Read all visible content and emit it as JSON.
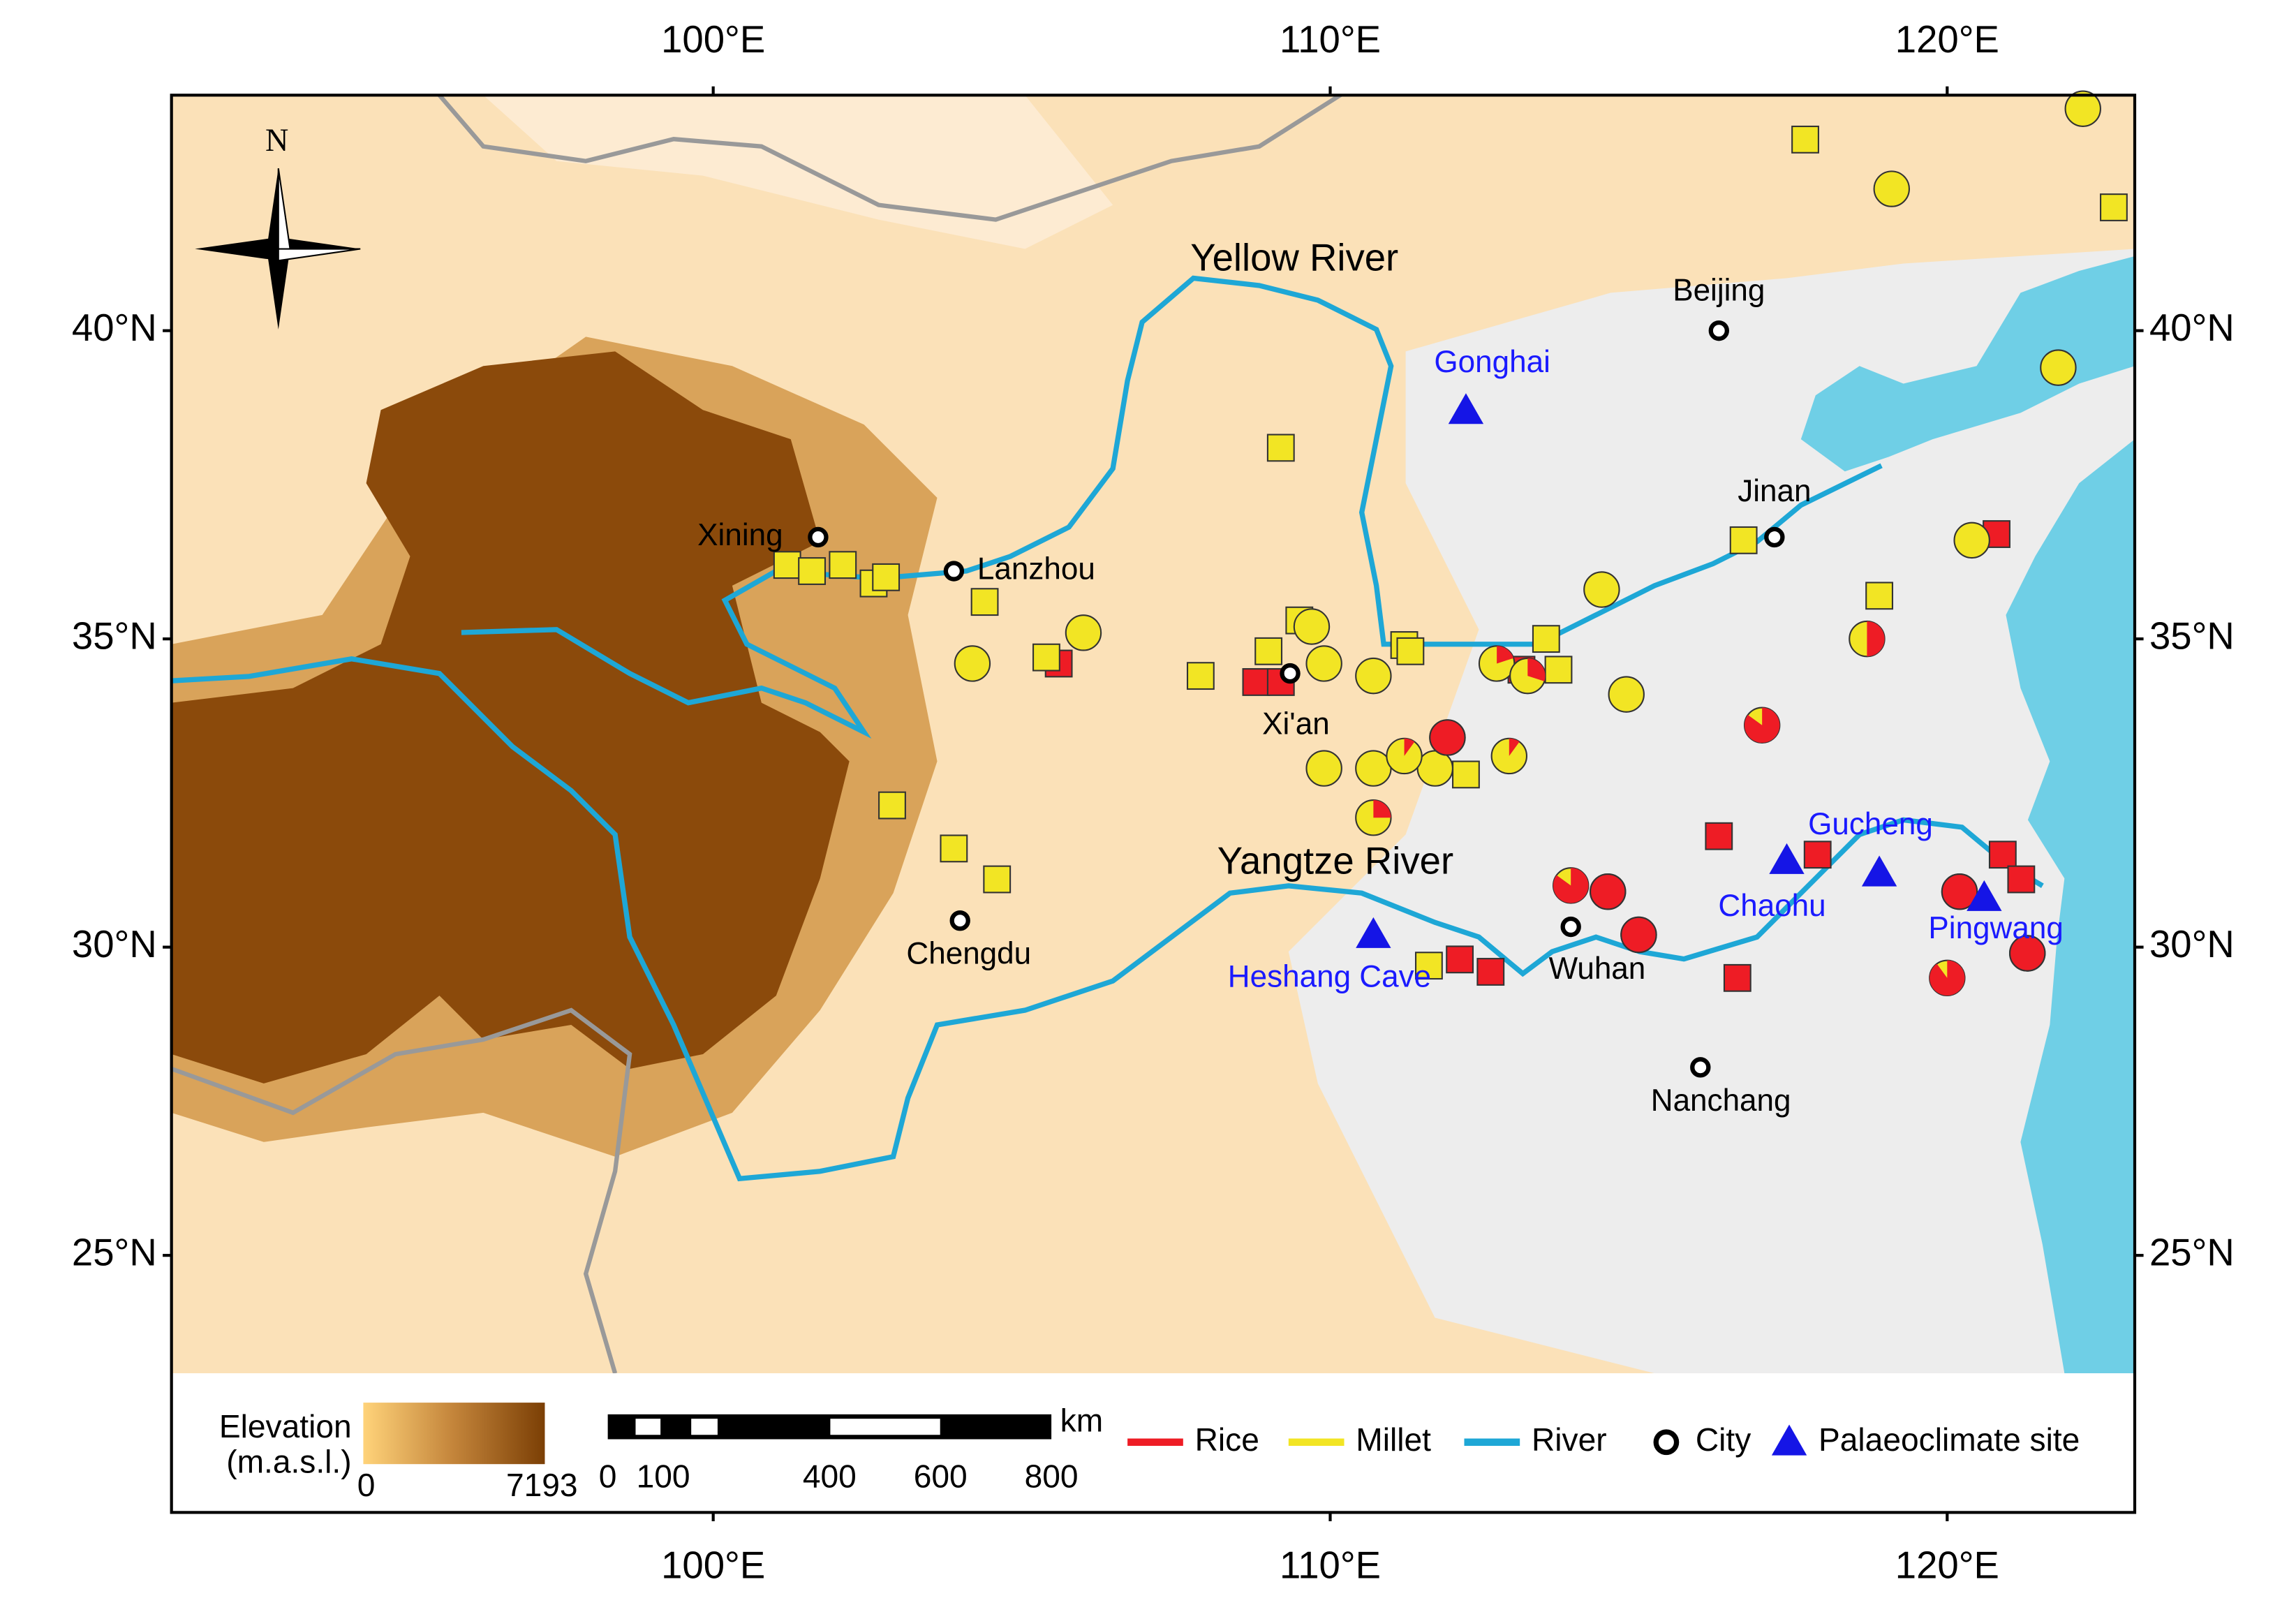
{
  "axes": {
    "xlim": [
      91.22,
      123.04
    ],
    "ylim": [
      20.83,
      43.82
    ],
    "xticks": [
      {
        "value": 100,
        "label": "100°E"
      },
      {
        "value": 110,
        "label": "110°E"
      },
      {
        "value": 120,
        "label": "120°E"
      }
    ],
    "yticks": [
      {
        "value": 25,
        "label": "25°N"
      },
      {
        "value": 30,
        "label": "30°N"
      },
      {
        "value": 35,
        "label": "35°N"
      },
      {
        "value": 40,
        "label": "40°N"
      }
    ]
  },
  "compass": "N",
  "rivers": [
    "Yellow River",
    "Yangtze River"
  ],
  "cities": [
    {
      "name": "Beijing",
      "lon": 116.3,
      "lat": 40.0
    },
    {
      "name": "Jinan",
      "lon": 117.2,
      "lat": 36.65
    },
    {
      "name": "Xining",
      "lon": 101.7,
      "lat": 36.65
    },
    {
      "name": "Lanzhou",
      "lon": 103.9,
      "lat": 36.1
    },
    {
      "name": "Xi'an",
      "lon": 109.35,
      "lat": 34.44
    },
    {
      "name": "Chengdu",
      "lon": 104.0,
      "lat": 30.43
    },
    {
      "name": "Wuhan",
      "lon": 113.9,
      "lat": 30.33
    },
    {
      "name": "Nanchang",
      "lon": 116.0,
      "lat": 28.05
    }
  ],
  "palaeoclimate_sites": [
    {
      "name": "Gonghai",
      "lon": 112.2,
      "lat": 38.7
    },
    {
      "name": "Chaohu",
      "lon": 117.4,
      "lat": 31.4
    },
    {
      "name": "Gucheng",
      "lon": 118.9,
      "lat": 31.2
    },
    {
      "name": "Pingwang",
      "lon": 120.6,
      "lat": 30.8
    },
    {
      "name": "Heshang Cave",
      "lon": 110.7,
      "lat": 30.2
    }
  ],
  "square_sites": [
    {
      "lon": 117.7,
      "lat": 43.1,
      "rice": 0
    },
    {
      "lon": 122.7,
      "lat": 42.0,
      "rice": 0
    },
    {
      "lon": 109.2,
      "lat": 38.1,
      "rice": 0
    },
    {
      "lon": 101.2,
      "lat": 36.2,
      "rice": 0
    },
    {
      "lon": 101.6,
      "lat": 36.1,
      "rice": 0
    },
    {
      "lon": 102.1,
      "lat": 36.2,
      "rice": 0
    },
    {
      "lon": 102.6,
      "lat": 35.9,
      "rice": 0
    },
    {
      "lon": 102.8,
      "lat": 36.0,
      "rice": 0
    },
    {
      "lon": 104.4,
      "lat": 35.6,
      "rice": 0
    },
    {
      "lon": 116.7,
      "lat": 36.6,
      "rice": 0
    },
    {
      "lon": 118.9,
      "lat": 35.7,
      "rice": 0
    },
    {
      "lon": 105.6,
      "lat": 34.6,
      "rice": 100
    },
    {
      "lon": 105.4,
      "lat": 34.7,
      "rice": 0
    },
    {
      "lon": 107.9,
      "lat": 34.4,
      "rice": 0
    },
    {
      "lon": 108.8,
      "lat": 34.3,
      "rice": 100
    },
    {
      "lon": 109.2,
      "lat": 34.3,
      "rice": 100
    },
    {
      "lon": 109.5,
      "lat": 35.3,
      "rice": 0
    },
    {
      "lon": 109.0,
      "lat": 34.8,
      "rice": 0
    },
    {
      "lon": 111.2,
      "lat": 34.9,
      "rice": 0
    },
    {
      "lon": 111.3,
      "lat": 34.8,
      "rice": 0
    },
    {
      "lon": 113.1,
      "lat": 34.5,
      "rice": 100
    },
    {
      "lon": 113.5,
      "lat": 35.0,
      "rice": 0
    },
    {
      "lon": 113.7,
      "lat": 34.5,
      "rice": 0
    },
    {
      "lon": 102.9,
      "lat": 32.3,
      "rice": 0
    },
    {
      "lon": 103.9,
      "lat": 31.6,
      "rice": 0
    },
    {
      "lon": 104.6,
      "lat": 31.1,
      "rice": 0
    },
    {
      "lon": 112.2,
      "lat": 32.8,
      "rice": 0
    },
    {
      "lon": 120.8,
      "lat": 36.7,
      "rice": 100
    },
    {
      "lon": 116.3,
      "lat": 31.8,
      "rice": 100
    },
    {
      "lon": 117.9,
      "lat": 31.5,
      "rice": 100
    },
    {
      "lon": 120.9,
      "lat": 31.5,
      "rice": 100
    },
    {
      "lon": 121.2,
      "lat": 31.1,
      "rice": 100
    },
    {
      "lon": 112.1,
      "lat": 29.8,
      "rice": 100
    },
    {
      "lon": 112.6,
      "lat": 29.6,
      "rice": 100
    },
    {
      "lon": 111.6,
      "lat": 29.7,
      "rice": 0
    },
    {
      "lon": 116.6,
      "lat": 29.5,
      "rice": 100
    }
  ],
  "circle_sites": [
    {
      "lon": 122.2,
      "lat": 43.6,
      "rice": 0
    },
    {
      "lon": 119.1,
      "lat": 42.3,
      "rice": 0
    },
    {
      "lon": 121.8,
      "lat": 39.4,
      "rice": 0
    },
    {
      "lon": 120.4,
      "lat": 36.6,
      "rice": 0
    },
    {
      "lon": 114.4,
      "lat": 35.8,
      "rice": 0
    },
    {
      "lon": 106.0,
      "lat": 35.1,
      "rice": 0
    },
    {
      "lon": 104.2,
      "lat": 34.6,
      "rice": 0
    },
    {
      "lon": 109.7,
      "lat": 35.2,
      "rice": 0
    },
    {
      "lon": 109.9,
      "lat": 34.6,
      "rice": 0
    },
    {
      "lon": 110.7,
      "lat": 34.4,
      "rice": 0
    },
    {
      "lon": 114.8,
      "lat": 34.1,
      "rice": 0
    },
    {
      "lon": 109.9,
      "lat": 32.9,
      "rice": 0
    },
    {
      "lon": 110.7,
      "lat": 32.9,
      "rice": 0
    },
    {
      "lon": 111.7,
      "lat": 32.9,
      "rice": 0
    },
    {
      "lon": 112.9,
      "lat": 33.1,
      "rice": 10
    },
    {
      "lon": 112.7,
      "lat": 34.6,
      "rice": 20
    },
    {
      "lon": 113.2,
      "lat": 34.4,
      "rice": 30
    },
    {
      "lon": 110.7,
      "lat": 32.1,
      "rice": 25
    },
    {
      "lon": 111.2,
      "lat": 33.1,
      "rice": 10
    },
    {
      "lon": 111.9,
      "lat": 33.4,
      "rice": 100
    },
    {
      "lon": 118.7,
      "lat": 35.0,
      "rice": 50
    },
    {
      "lon": 117.0,
      "lat": 33.6,
      "rice": 85
    },
    {
      "lon": 113.9,
      "lat": 31.0,
      "rice": 85
    },
    {
      "lon": 114.5,
      "lat": 30.9,
      "rice": 100
    },
    {
      "lon": 115.0,
      "lat": 30.2,
      "rice": 100
    },
    {
      "lon": 120.0,
      "lat": 29.5,
      "rice": 90
    },
    {
      "lon": 121.3,
      "lat": 29.9,
      "rice": 100
    },
    {
      "lon": 120.2,
      "lat": 30.9,
      "rice": 100
    }
  ],
  "legend": {
    "elevation_title": [
      "Elevation",
      "(m.a.s.l.)"
    ],
    "elevation_range": [
      0,
      7193
    ],
    "scale_ticks": [
      0,
      100,
      400,
      600,
      800
    ],
    "scale_unit": "km",
    "items": [
      {
        "label": "Rice",
        "color": "#ee1c25"
      },
      {
        "label": "Millet",
        "color": "#f2e524"
      },
      {
        "label": "River",
        "color": "#1ea7d6"
      },
      {
        "label": "City",
        "color": "#000000"
      },
      {
        "label": "Palaeoclimate site",
        "color": "#1515e6"
      }
    ]
  }
}
